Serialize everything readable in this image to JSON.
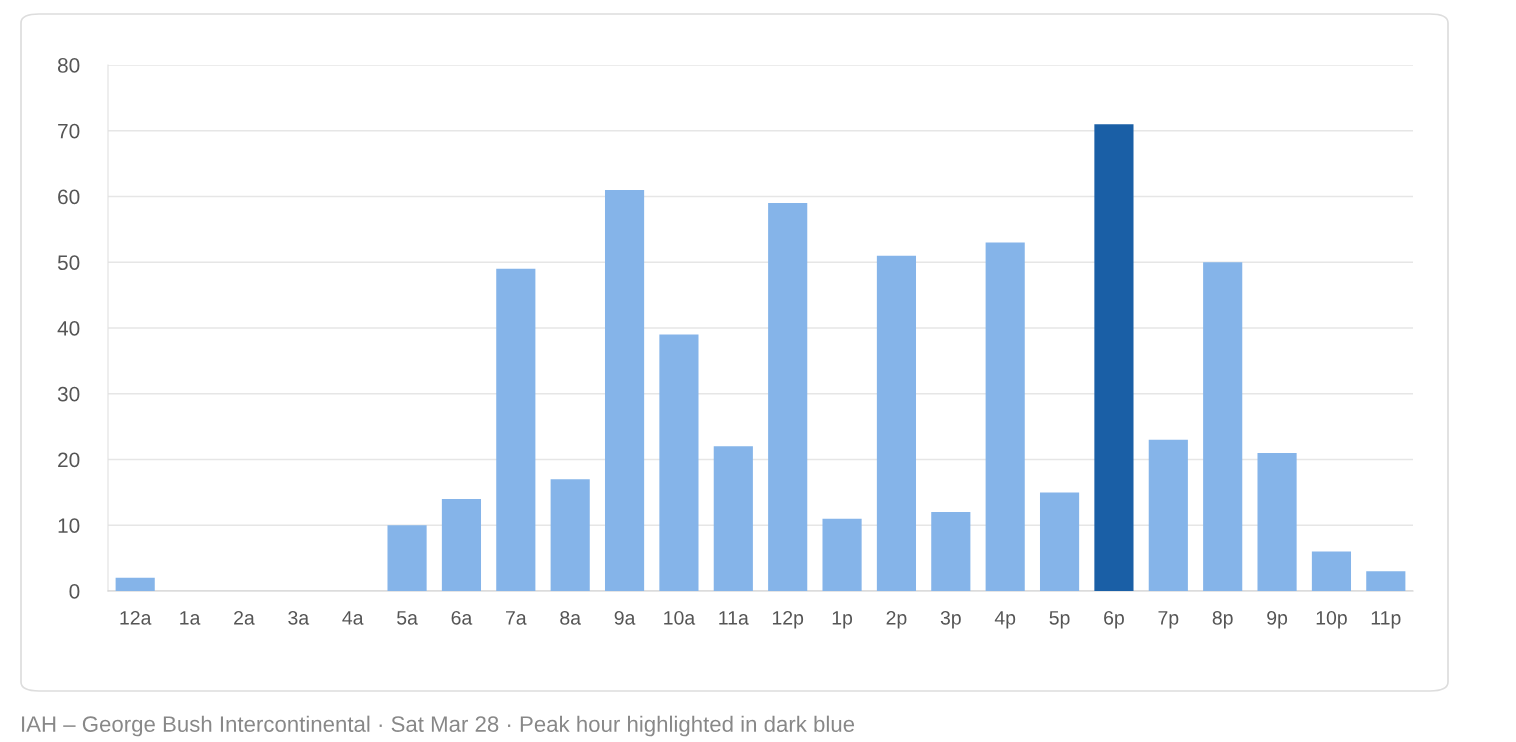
{
  "chart_data": {
    "type": "bar",
    "categories": [
      "12a",
      "1a",
      "2a",
      "3a",
      "4a",
      "5a",
      "6a",
      "7a",
      "8a",
      "9a",
      "10a",
      "11a",
      "12p",
      "1p",
      "2p",
      "3p",
      "4p",
      "5p",
      "6p",
      "7p",
      "8p",
      "9p",
      "10p",
      "11p"
    ],
    "values": [
      2,
      0,
      0,
      0,
      0,
      10,
      14,
      49,
      17,
      61,
      39,
      22,
      59,
      11,
      51,
      12,
      53,
      15,
      71,
      23,
      50,
      21,
      6,
      3
    ],
    "colors": [
      "#85b4e9",
      "#85b4e9",
      "#85b4e9",
      "#85b4e9",
      "#85b4e9",
      "#85b4e9",
      "#85b4e9",
      "#85b4e9",
      "#85b4e9",
      "#85b4e9",
      "#85b4e9",
      "#85b4e9",
      "#85b4e9",
      "#85b4e9",
      "#85b4e9",
      "#85b4e9",
      "#85b4e9",
      "#85b4e9",
      "#1a5fa6",
      "#85b4e9",
      "#85b4e9",
      "#85b4e9",
      "#85b4e9",
      "#85b4e9"
    ],
    "ylim": [
      0,
      80
    ],
    "yticks": [
      0,
      10,
      20,
      30,
      40,
      50,
      60,
      70,
      80
    ],
    "grid": "y",
    "legend": false,
    "annotations": [
      "IAH – George Bush Intercontinental · Sat Mar 28 · Peak hour highlighted in dark blue"
    ]
  }
}
